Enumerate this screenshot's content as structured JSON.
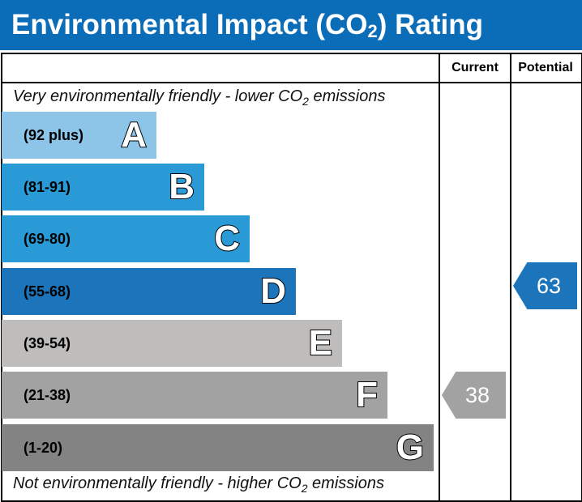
{
  "title": {
    "main": "Environmental Impact (CO",
    "sub": "2",
    "end": ") Rating"
  },
  "columns": {
    "current": "Current",
    "potential": "Potential"
  },
  "top_note": {
    "pre": "Very environmentally friendly - lower CO",
    "sub": "2",
    "post": " emissions"
  },
  "bottom_note": {
    "pre": "Not environmentally friendly - higher CO",
    "sub": "2",
    "post": " emissions"
  },
  "chart_data": {
    "type": "bar",
    "bands": [
      {
        "letter": "A",
        "range": "(92 plus)",
        "color": "#8cc5e8"
      },
      {
        "letter": "B",
        "range": "(81-91)",
        "color": "#2a9ad6"
      },
      {
        "letter": "C",
        "range": "(69-80)",
        "color": "#2a9ad6"
      },
      {
        "letter": "D",
        "range": "(55-68)",
        "color": "#1c75bb"
      },
      {
        "letter": "E",
        "range": "(39-54)",
        "color": "#bebdbb"
      },
      {
        "letter": "F",
        "range": "(21-38)",
        "color": "#a2a2a2"
      },
      {
        "letter": "G",
        "range": "(1-20)",
        "color": "#838383"
      }
    ],
    "current": {
      "value": "38",
      "band": "F",
      "color": "#a2a2a2"
    },
    "potential": {
      "value": "63",
      "band": "D",
      "color": "#1c75bb"
    }
  }
}
